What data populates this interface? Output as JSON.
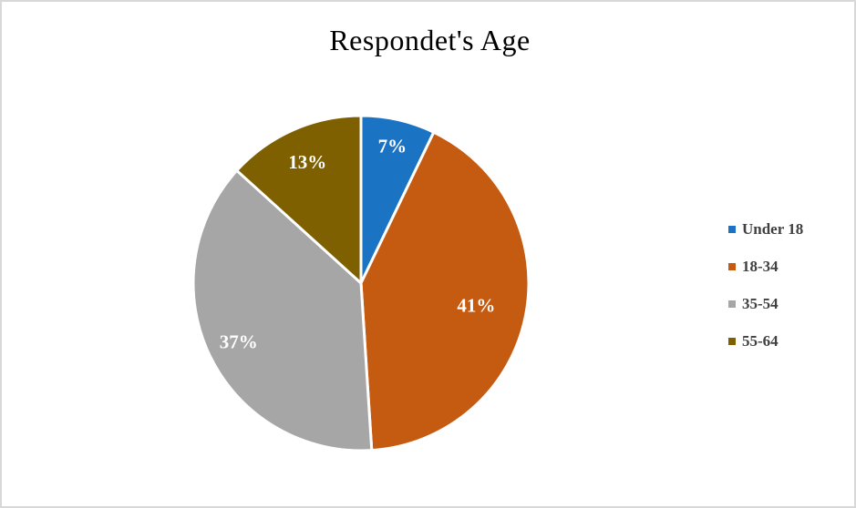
{
  "window": {
    "background": "#ffffff",
    "border_color": "#d8d8d8"
  },
  "chart_data": {
    "type": "pie",
    "title": "Respondet's Age",
    "categories": [
      "Under 18",
      "18-34",
      "35-54",
      "55-64"
    ],
    "values": [
      7,
      41,
      37,
      13
    ],
    "data_labels": [
      "7%",
      "41%",
      "37%",
      "13%"
    ],
    "colors": [
      "#1B73C4",
      "#C55A11",
      "#A6A6A6",
      "#7F6000"
    ],
    "data_label_color": "#FFFFFF",
    "title_color": "#000000",
    "legend_text_color": "#404040",
    "legend_position": "right",
    "start_angle_deg": 0,
    "direction": "clockwise",
    "slice_separator_color": "#FFFFFF"
  }
}
